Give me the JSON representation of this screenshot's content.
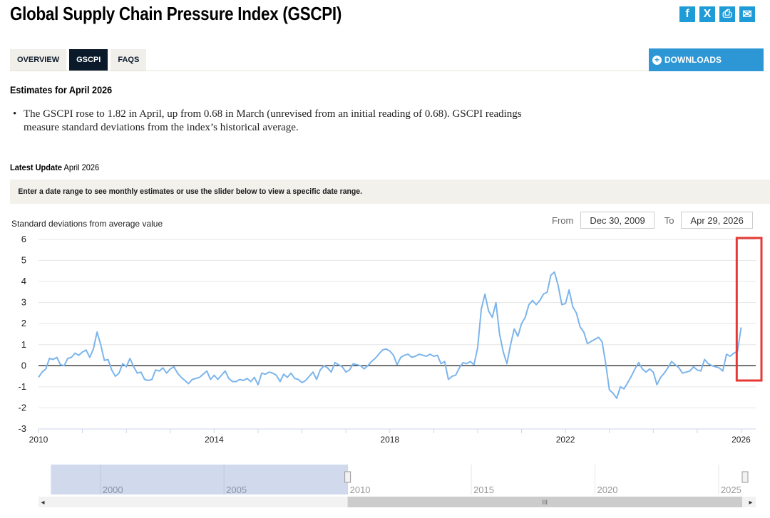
{
  "page": {
    "title": "Global Supply Chain Pressure Index (GSCPI)",
    "social": [
      {
        "icon": "facebook-icon",
        "glyph": "f"
      },
      {
        "icon": "x-twitter-icon",
        "glyph": "X"
      },
      {
        "icon": "print-icon",
        "glyph": "⎙"
      },
      {
        "icon": "email-icon",
        "glyph": "✉"
      }
    ],
    "tabs": [
      {
        "label": "OVERVIEW",
        "active": false
      },
      {
        "label": "GSCPI",
        "active": true
      },
      {
        "label": "FAQS",
        "active": false
      }
    ],
    "downloads_label": "DOWNLOADS",
    "estimates_heading": "Estimates for April 2026",
    "bullet_text": "The GSCPI rose to 1.82 in April, up from 0.68 in March (unrevised from an initial reading of 0.68). GSCPI readings measure standard deviations from the index’s historical average.",
    "latest_update_label": "Latest Update",
    "latest_update_value": "April 2026",
    "range_note": "Enter a date range to see monthly estimates or use the slider below to view a specific date range.",
    "from_label": "From",
    "from_value": "Dec 30, 2009",
    "to_label": "To",
    "to_value": "Apr 29, 2026",
    "accent_color": "#2d97d6",
    "navy_color": "#0b1a2b",
    "highlight_color": "#e53935"
  },
  "chart_data": {
    "type": "line",
    "title": "",
    "ylabel": "Standard deviations from average value",
    "ylim": [
      -3,
      6
    ],
    "yticks": [
      -3,
      -2,
      -1,
      0,
      1,
      2,
      3,
      4,
      5,
      6
    ],
    "xlim": [
      2010.0,
      2026.333
    ],
    "xticks": [
      2010,
      2014,
      2018,
      2022,
      2026
    ],
    "line_color": "#7cb5ec",
    "series": [
      {
        "name": "GSCPI",
        "start": 2010.0,
        "step_months": 1,
        "values": [
          -0.55,
          -0.3,
          -0.15,
          0.35,
          0.3,
          0.4,
          0.05,
          0.0,
          0.35,
          0.4,
          0.6,
          0.5,
          0.65,
          0.75,
          0.4,
          0.8,
          1.6,
          1.0,
          0.25,
          0.3,
          -0.2,
          -0.5,
          -0.35,
          0.1,
          -0.05,
          0.35,
          -0.05,
          -0.35,
          -0.3,
          -0.65,
          -0.7,
          -0.65,
          -0.2,
          -0.25,
          -0.1,
          -0.35,
          -0.15,
          -0.05,
          -0.35,
          -0.55,
          -0.7,
          -0.85,
          -0.65,
          -0.6,
          -0.55,
          -0.4,
          -0.25,
          -0.65,
          -0.45,
          -0.65,
          -0.45,
          -0.25,
          -0.6,
          -0.75,
          -0.75,
          -0.65,
          -0.7,
          -0.6,
          -0.75,
          -0.55,
          -0.9,
          -0.35,
          -0.4,
          -0.3,
          -0.35,
          -0.45,
          -0.75,
          -0.4,
          -0.55,
          -0.35,
          -0.6,
          -0.65,
          -0.8,
          -0.7,
          -0.5,
          -0.3,
          -0.65,
          -0.2,
          0.0,
          -0.1,
          -0.3,
          0.15,
          0.05,
          -0.05,
          -0.3,
          -0.2,
          0.1,
          0.05,
          0.0,
          -0.15,
          0.0,
          0.2,
          0.35,
          0.55,
          0.75,
          0.8,
          0.7,
          0.5,
          0.05,
          0.4,
          0.5,
          0.55,
          0.4,
          0.45,
          0.55,
          0.5,
          0.45,
          0.55,
          0.45,
          0.5,
          0.1,
          0.2,
          -0.65,
          -0.5,
          -0.45,
          -0.1,
          0.15,
          0.1,
          0.2,
          0.05,
          0.85,
          2.7,
          3.4,
          2.6,
          2.3,
          3.0,
          1.5,
          0.65,
          0.1,
          1.0,
          1.75,
          1.4,
          2.0,
          2.3,
          2.9,
          3.1,
          2.9,
          3.1,
          3.4,
          3.5,
          4.3,
          4.45,
          3.8,
          2.9,
          2.95,
          3.6,
          2.8,
          2.5,
          1.85,
          1.6,
          1.05,
          1.15,
          1.25,
          1.35,
          1.15,
          0.1,
          -1.15,
          -1.3,
          -1.55,
          -1.0,
          -1.1,
          -0.8,
          -0.5,
          -0.15,
          0.15,
          -0.15,
          -0.3,
          -0.15,
          -0.3,
          -0.9,
          -0.55,
          -0.35,
          -0.1,
          0.2,
          0.05,
          -0.1,
          -0.35,
          -0.3,
          -0.25,
          -0.05,
          -0.2,
          -0.25,
          0.3,
          0.1,
          0.0,
          -0.05,
          -0.1,
          -0.25,
          0.55,
          0.45,
          0.6,
          0.68,
          1.82
        ]
      }
    ],
    "highlight": {
      "x_from": 2025.9,
      "x_to": 2026.333,
      "y_from": -0.7,
      "y_to": 6.0
    },
    "navigator": {
      "labels": [
        "2000",
        "2005",
        "2010",
        "2015",
        "2020",
        "2025"
      ],
      "years": [
        2000,
        2005,
        2010,
        2015,
        2020,
        2025
      ],
      "full_range": [
        1997.5,
        2026.5
      ],
      "selected_range": [
        1998.0,
        2010.0
      ]
    }
  }
}
